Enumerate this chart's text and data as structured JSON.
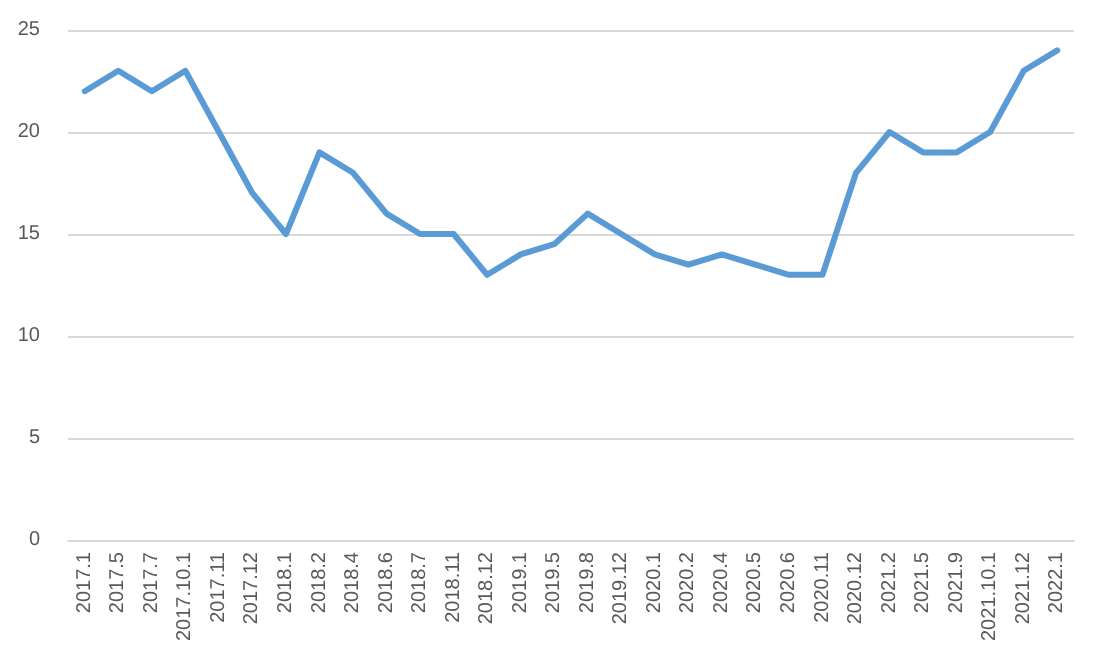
{
  "chart_data": {
    "type": "line",
    "categories": [
      "2017.1",
      "2017.5",
      "2017.7",
      "2017.10.1",
      "2017.11",
      "2017.12",
      "2018.1",
      "2018.2",
      "2018.4",
      "2018.6",
      "2018.7",
      "2018.11",
      "2018.12",
      "2019.1",
      "2019.5",
      "2019.8",
      "2019.12",
      "2020.1",
      "2020.2",
      "2020.4",
      "2020.5",
      "2020.6",
      "2020.11",
      "2020.12",
      "2021.2",
      "2021.5",
      "2021.9",
      "2021.10.1",
      "2021.12",
      "2022.1"
    ],
    "series": [
      {
        "color": "#5b9bd5",
        "values": [
          22,
          23,
          22,
          23,
          20,
          17,
          15,
          19,
          18,
          16,
          15,
          15,
          13,
          14,
          14.5,
          16,
          15,
          14,
          13.5,
          14,
          13.5,
          13,
          13,
          18,
          20,
          19,
          19,
          20,
          23,
          24
        ]
      }
    ],
    "ylim": [
      0,
      25
    ],
    "yticks": [
      0,
      5,
      10,
      15,
      20,
      25
    ],
    "grid": "y",
    "marker": "none",
    "line_style": "solid"
  }
}
